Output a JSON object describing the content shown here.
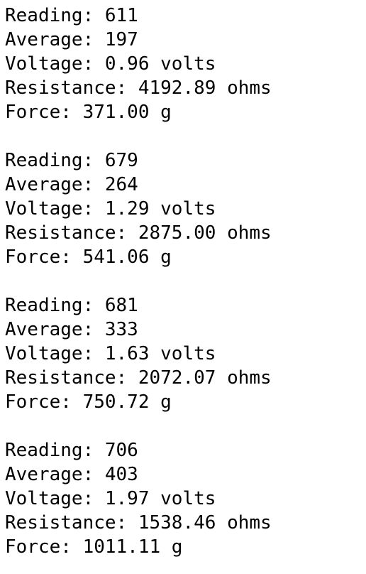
{
  "blocks": [
    [
      "Reading: 611",
      "Average: 197",
      "Voltage: 0.96 volts",
      "Resistance: 4192.89 ohms",
      "Force: 371.00 g"
    ],
    [
      "Reading: 679",
      "Average: 264",
      "Voltage: 1.29 volts",
      "Resistance: 2875.00 ohms",
      "Force: 541.06 g"
    ],
    [
      "Reading: 681",
      "Average: 333",
      "Voltage: 1.63 volts",
      "Resistance: 2072.07 ohms",
      "Force: 750.72 g"
    ],
    [
      "Reading: 706",
      "Average: 403",
      "Voltage: 1.97 volts",
      "Resistance: 1538.46 ohms",
      "Force: 1011.11 g"
    ]
  ]
}
